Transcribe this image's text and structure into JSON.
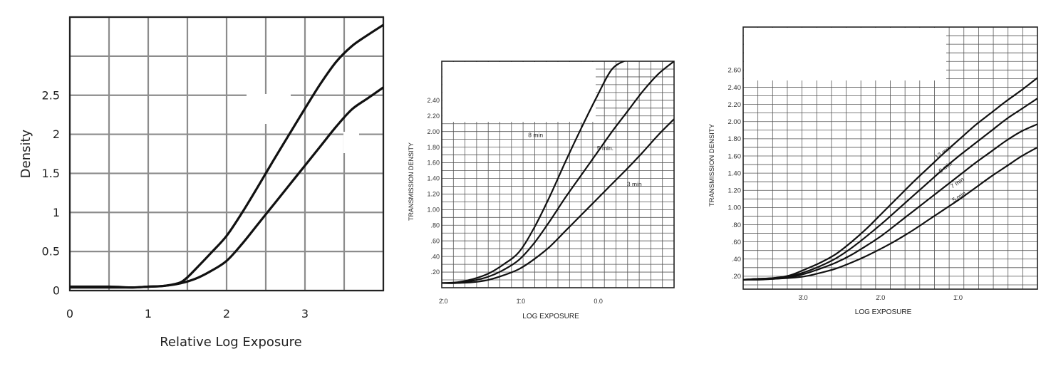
{
  "chart_data": [
    {
      "type": "line",
      "xlabel": "Relative Log Exposure",
      "ylabel": "Density",
      "xlim": [
        0,
        4
      ],
      "ylim": [
        0,
        3.5
      ],
      "x_ticks": [
        {
          "value": 0,
          "label": "0"
        },
        {
          "value": 1,
          "label": "1"
        },
        {
          "value": 2,
          "label": "2"
        },
        {
          "value": 3,
          "label": "3"
        }
      ],
      "y_ticks": [
        {
          "value": 0,
          "label": "0"
        },
        {
          "value": 0.5,
          "label": "0.5"
        },
        {
          "value": 1,
          "label": "1"
        },
        {
          "value": 1.5,
          "label": "1.5"
        },
        {
          "value": 2,
          "label": "2"
        },
        {
          "value": 2.5,
          "label": "2.5"
        }
      ],
      "grid": true,
      "series": [
        {
          "x": [
            0,
            0.5,
            0.8,
            1.0,
            1.2,
            1.4,
            1.5,
            1.6,
            1.8,
            2.0,
            2.2,
            2.4,
            2.6,
            2.8,
            3.0,
            3.2,
            3.4,
            3.6,
            3.8,
            4.0
          ],
          "y": [
            0.05,
            0.05,
            0.04,
            0.05,
            0.06,
            0.1,
            0.17,
            0.27,
            0.48,
            0.7,
            1.0,
            1.33,
            1.67,
            2.0,
            2.33,
            2.65,
            2.93,
            3.13,
            3.27,
            3.4
          ]
        },
        {
          "x": [
            0,
            0.5,
            0.8,
            1.0,
            1.2,
            1.4,
            1.6,
            1.8,
            2.0,
            2.2,
            2.4,
            2.6,
            2.8,
            3.0,
            3.2,
            3.4,
            3.6,
            3.8,
            4.0
          ],
          "y": [
            0.04,
            0.04,
            0.04,
            0.05,
            0.06,
            0.09,
            0.15,
            0.25,
            0.38,
            0.6,
            0.85,
            1.1,
            1.35,
            1.6,
            1.85,
            2.1,
            2.32,
            2.46,
            2.6
          ]
        }
      ]
    },
    {
      "type": "line",
      "xlabel": "LOG EXPOSURE",
      "ylabel": "TRANSMISSION DENSITY",
      "xlim": [
        0,
        3
      ],
      "ylim": [
        0,
        2.9
      ],
      "x_ticks": [
        {
          "value": 0,
          "label": "2̄.0"
        },
        {
          "value": 1,
          "label": "1̄.0"
        },
        {
          "value": 2,
          "label": "0.0"
        }
      ],
      "y_ticks": [
        {
          "value": 0.2,
          "label": ".20"
        },
        {
          "value": 0.4,
          "label": ".40"
        },
        {
          "value": 0.6,
          "label": ".60"
        },
        {
          "value": 0.8,
          "label": ".80"
        },
        {
          "value": 1.0,
          "label": "1.00"
        },
        {
          "value": 1.2,
          "label": "1.20"
        },
        {
          "value": 1.4,
          "label": "1.40"
        },
        {
          "value": 1.6,
          "label": "1.60"
        },
        {
          "value": 1.8,
          "label": "1.80"
        },
        {
          "value": 2.0,
          "label": "2.00"
        },
        {
          "value": 2.2,
          "label": "2.20"
        },
        {
          "value": 2.4,
          "label": "2.40"
        }
      ],
      "grid": true,
      "series": [
        {
          "name": "8 min",
          "x": [
            0,
            0.2,
            0.4,
            0.6,
            0.8,
            1.0,
            1.2,
            1.4,
            1.6,
            1.8,
            2.0,
            2.2,
            2.4
          ],
          "y": [
            0.06,
            0.07,
            0.11,
            0.18,
            0.3,
            0.46,
            0.78,
            1.18,
            1.62,
            2.04,
            2.44,
            2.8,
            2.92
          ]
        },
        {
          "name": "5 min.",
          "x": [
            0,
            0.2,
            0.4,
            0.6,
            0.8,
            1.0,
            1.2,
            1.4,
            1.6,
            1.8,
            2.0,
            2.2,
            2.4,
            2.6,
            2.8,
            3.0
          ],
          "y": [
            0.06,
            0.06,
            0.09,
            0.14,
            0.23,
            0.36,
            0.58,
            0.86,
            1.16,
            1.44,
            1.72,
            2.0,
            2.26,
            2.52,
            2.74,
            2.9
          ]
        },
        {
          "name": "3 min",
          "x": [
            0,
            0.2,
            0.4,
            0.6,
            0.8,
            1.0,
            1.2,
            1.4,
            1.6,
            1.8,
            2.0,
            2.2,
            2.4,
            2.6,
            2.8,
            3.0
          ],
          "y": [
            0.06,
            0.06,
            0.07,
            0.1,
            0.16,
            0.24,
            0.37,
            0.53,
            0.73,
            0.93,
            1.13,
            1.33,
            1.53,
            1.74,
            1.96,
            2.16
          ]
        }
      ]
    },
    {
      "type": "line",
      "xlabel": "LOG EXPOSURE",
      "ylabel": "TRANSMISSION DENSITY",
      "xlim": [
        0,
        3.8
      ],
      "ylim": [
        0.05,
        3.1
      ],
      "x_ticks": [
        {
          "value": 0.75,
          "label": "3̄.0"
        },
        {
          "value": 1.75,
          "label": "2̄.0"
        },
        {
          "value": 2.75,
          "label": "1̄.0"
        }
      ],
      "y_ticks": [
        {
          "value": 0.2,
          "label": ".20"
        },
        {
          "value": 0.4,
          "label": ".40"
        },
        {
          "value": 0.6,
          "label": ".60"
        },
        {
          "value": 0.8,
          "label": ".80"
        },
        {
          "value": 1.0,
          "label": "1.00"
        },
        {
          "value": 1.2,
          "label": "1.20"
        },
        {
          "value": 1.4,
          "label": "1.40"
        },
        {
          "value": 1.6,
          "label": "1.60"
        },
        {
          "value": 1.8,
          "label": "1.80"
        },
        {
          "value": 2.0,
          "label": "2.00"
        },
        {
          "value": 2.2,
          "label": "2.20"
        },
        {
          "value": 2.4,
          "label": "2.40"
        },
        {
          "value": 2.6,
          "label": "2.60"
        }
      ],
      "grid": true,
      "series": [
        {
          "name": "12 min",
          "x": [
            0,
            0.2,
            0.4,
            0.6,
            0.8,
            1.0,
            1.2,
            1.4,
            1.6,
            1.8,
            2.0,
            2.2,
            2.4,
            2.6,
            2.8,
            3.0,
            3.2,
            3.4,
            3.6,
            3.8
          ],
          "y": [
            0.16,
            0.17,
            0.18,
            0.21,
            0.28,
            0.36,
            0.46,
            0.6,
            0.76,
            0.94,
            1.12,
            1.3,
            1.47,
            1.64,
            1.8,
            1.96,
            2.1,
            2.24,
            2.37,
            2.51
          ]
        },
        {
          "name": "9 min",
          "x": [
            0,
            0.2,
            0.4,
            0.6,
            0.8,
            1.0,
            1.2,
            1.4,
            1.6,
            1.8,
            2.0,
            2.2,
            2.4,
            2.6,
            2.8,
            3.0,
            3.2,
            3.4,
            3.6,
            3.8
          ],
          "y": [
            0.16,
            0.17,
            0.18,
            0.2,
            0.25,
            0.32,
            0.41,
            0.53,
            0.67,
            0.82,
            0.98,
            1.14,
            1.3,
            1.46,
            1.61,
            1.75,
            1.89,
            2.03,
            2.15,
            2.27
          ]
        },
        {
          "name": "7 min",
          "x": [
            0,
            0.2,
            0.4,
            0.6,
            0.8,
            1.0,
            1.2,
            1.4,
            1.6,
            1.8,
            2.0,
            2.2,
            2.4,
            2.6,
            2.8,
            3.0,
            3.2,
            3.4,
            3.6,
            3.8
          ],
          "y": [
            0.16,
            0.17,
            0.17,
            0.19,
            0.23,
            0.29,
            0.36,
            0.45,
            0.56,
            0.68,
            0.82,
            0.96,
            1.1,
            1.24,
            1.38,
            1.52,
            1.65,
            1.78,
            1.89,
            1.97
          ]
        },
        {
          "name": "5 min",
          "x": [
            0,
            0.2,
            0.4,
            0.6,
            0.8,
            1.0,
            1.2,
            1.4,
            1.6,
            1.8,
            2.0,
            2.2,
            2.4,
            2.6,
            2.8,
            3.0,
            3.2,
            3.4,
            3.6,
            3.8
          ],
          "y": [
            0.16,
            0.16,
            0.17,
            0.18,
            0.2,
            0.24,
            0.29,
            0.36,
            0.44,
            0.53,
            0.63,
            0.74,
            0.86,
            0.98,
            1.1,
            1.23,
            1.36,
            1.48,
            1.6,
            1.7
          ]
        }
      ]
    }
  ]
}
